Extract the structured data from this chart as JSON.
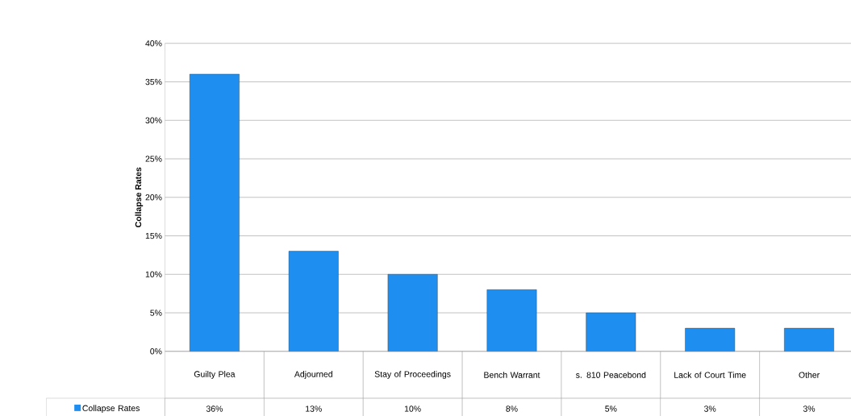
{
  "chart_data": {
    "type": "bar",
    "categories": [
      "Guilty Plea",
      "Adjourned",
      "Stay of Proceedings",
      "Bench Warrant",
      "s. 810 Peacebond",
      "Lack of Court Time",
      "Other"
    ],
    "series": [
      {
        "name": "Collapse Rates",
        "color": "#1e8ff0",
        "values": [
          36,
          13,
          10,
          8,
          5,
          3,
          3
        ],
        "value_labels": [
          "36%",
          "13%",
          "10%",
          "8%",
          "5%",
          "3%",
          "3%"
        ]
      }
    ],
    "ylabel": "Collapse Rates",
    "ylim": [
      0,
      40
    ],
    "yticks": [
      {
        "value": 0,
        "label": "0%"
      },
      {
        "value": 5,
        "label": "5%"
      },
      {
        "value": 10,
        "label": "10%"
      },
      {
        "value": 15,
        "label": "15%"
      },
      {
        "value": 20,
        "label": "20%"
      },
      {
        "value": 25,
        "label": "25%"
      },
      {
        "value": 30,
        "label": "30%"
      },
      {
        "value": 35,
        "label": "35%"
      },
      {
        "value": 40,
        "label": "40%"
      }
    ],
    "grid": "y",
    "legend": "bottom"
  }
}
